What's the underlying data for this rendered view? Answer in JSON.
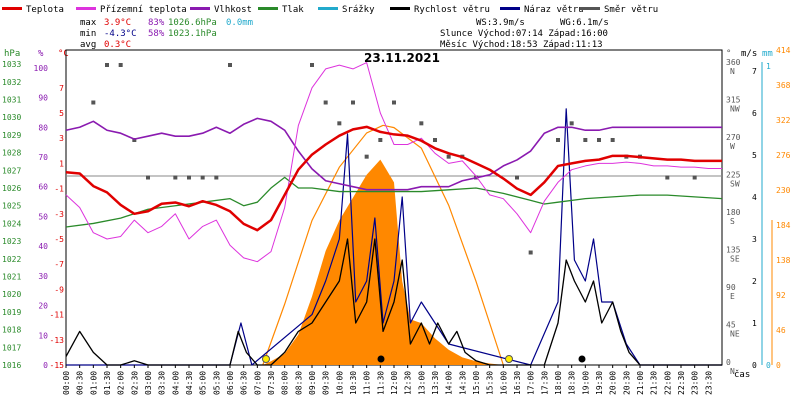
{
  "chart_data": {
    "type": "line",
    "title": "23.11.2021",
    "xlabel": "čas",
    "legend": [
      {
        "name": "Teplota",
        "color": "#e00000"
      },
      {
        "name": "Přízemní teplota",
        "color": "#dd33dd"
      },
      {
        "name": "Vlhkost",
        "color": "#8a1ab0"
      },
      {
        "name": "Tlak",
        "color": "#2a8a2a"
      },
      {
        "name": "Srážky",
        "color": "#22aacc"
      },
      {
        "name": "Rychlost větru",
        "color": "#000000"
      },
      {
        "name": "Náraz větru",
        "color": "#000088"
      },
      {
        "name": "Směr větru",
        "color": "#555555"
      }
    ],
    "stats": {
      "max_label": "max",
      "max_temp": "3.9°C",
      "max_hum": "83%",
      "max_press": "1026.6hPa",
      "rain": "0.0mm",
      "min_label": "min",
      "min_temp": "-4.3°C",
      "min_hum": "58%",
      "min_press": "1023.1hPa",
      "avg_label": "avg",
      "avg_temp": "0.3°C",
      "wind_speed": "WS:3.9m/s",
      "wind_gust": "WG:6.1m/s",
      "sun": "Slunce Východ:07:14 Západ:16:00",
      "moon": "Měsíc Východ:18:53 Západ:11:13"
    },
    "axes": {
      "hpa_title": "hPa",
      "hpa_ticks": [
        "1033",
        "1032",
        "1031",
        "1030",
        "1029",
        "1028",
        "1027",
        "1026",
        "1025",
        "1024",
        "1023",
        "1022",
        "1021",
        "1020",
        "1019",
        "1018",
        "1017",
        "1016"
      ],
      "hum_title": "%",
      "hum_ticks": [
        "100",
        "90",
        "80",
        "70",
        "60",
        "50",
        "40",
        "30",
        "20",
        "10",
        "0"
      ],
      "temp_title": "°C",
      "temp_ticks": [
        "7",
        "5",
        "3",
        "1",
        "-1",
        "-3",
        "-5",
        "-7",
        "-9",
        "-11",
        "-13",
        "-15"
      ],
      "dir_title": "°",
      "dir_ticks": [
        "360 N",
        "315 NW",
        "270 W",
        "225 SW",
        "180 S",
        "135 SE",
        "90 E",
        "45 NE",
        "0 N"
      ],
      "ms_title": "m/s",
      "ms_ticks": [
        "7",
        "6",
        "5",
        "4",
        "3",
        "2",
        "1",
        "0"
      ],
      "mm_title": "mm",
      "mm_ticks": [
        "1",
        "0"
      ],
      "solar_ticks": [
        "414",
        "368",
        "322",
        "276",
        "230",
        "184",
        "138",
        "92",
        "46",
        "0"
      ],
      "time_ticks": [
        "00:00",
        "00:30",
        "01:00",
        "01:30",
        "02:00",
        "02:30",
        "03:00",
        "03:30",
        "04:00",
        "04:30",
        "05:00",
        "05:30",
        "06:00",
        "06:30",
        "07:00",
        "07:30",
        "08:00",
        "08:30",
        "09:00",
        "09:30",
        "10:00",
        "10:30",
        "11:00",
        "11:30",
        "12:00",
        "12:30",
        "13:00",
        "13:30",
        "14:00",
        "14:30",
        "15:00",
        "15:30",
        "16:00",
        "16:30",
        "17:00",
        "17:30",
        "18:00",
        "18:30",
        "19:00",
        "19:30",
        "20:00",
        "20:30",
        "21:00",
        "21:30",
        "22:00",
        "22:30",
        "23:00",
        "23:30"
      ]
    },
    "series": [
      {
        "name": "Teplota",
        "unit": "°C",
        "color": "#e00000",
        "x": [
          0,
          0.5,
          1,
          1.5,
          2,
          2.5,
          3,
          3.5,
          4,
          4.5,
          5,
          5.5,
          6,
          6.5,
          7,
          7.5,
          8,
          8.5,
          9,
          9.5,
          10,
          10.5,
          11,
          11.5,
          12,
          12.5,
          13,
          13.5,
          14,
          14.5,
          15,
          15.5,
          16,
          16.5,
          17,
          17.5,
          18,
          18.5,
          19,
          19.5,
          20,
          20.5,
          21,
          21.5,
          22,
          22.5,
          23,
          23.5,
          24
        ],
        "y": [
          0.3,
          0.2,
          -0.8,
          -1.3,
          -2.3,
          -3.0,
          -2.8,
          -2.2,
          -2.1,
          -2.4,
          -2.0,
          -2.3,
          -2.8,
          -3.8,
          -4.3,
          -3.5,
          -1.5,
          0.5,
          1.7,
          2.5,
          3.2,
          3.7,
          3.9,
          3.5,
          3.3,
          3.2,
          2.8,
          2.2,
          1.8,
          1.5,
          1.0,
          0.5,
          -0.2,
          -1.0,
          -1.5,
          -0.5,
          0.8,
          1.0,
          1.2,
          1.3,
          1.6,
          1.6,
          1.5,
          1.4,
          1.3,
          1.3,
          1.2,
          1.2,
          1.2
        ]
      },
      {
        "name": "Přízemní teplota",
        "unit": "°C",
        "color": "#dd33dd",
        "x": [
          0,
          0.5,
          1,
          1.5,
          2,
          2.5,
          3,
          3.5,
          4,
          4.5,
          5,
          5.5,
          6,
          6.5,
          7,
          7.5,
          8,
          8.5,
          9,
          9.5,
          10,
          10.5,
          11,
          11.5,
          12,
          12.5,
          13,
          13.5,
          14,
          14.5,
          15,
          15.5,
          16,
          16.5,
          17,
          17.5,
          18,
          18.5,
          19,
          19.5,
          20,
          20.5,
          21,
          21.5,
          22,
          22.5,
          23,
          23.5,
          24
        ],
        "y": [
          -1.5,
          -2.5,
          -4.5,
          -5.0,
          -4.8,
          -3.5,
          -4.5,
          -4.0,
          -3.0,
          -5.0,
          -4.0,
          -3.5,
          -5.5,
          -6.5,
          -6.8,
          -6.0,
          -2.5,
          4.0,
          7.0,
          8.5,
          8.8,
          8.5,
          9.0,
          5.0,
          2.5,
          2.5,
          3.0,
          1.8,
          1.0,
          1.2,
          0.0,
          -1.5,
          -1.8,
          -3.0,
          -4.5,
          -2.0,
          -0.5,
          0.5,
          0.8,
          1.0,
          1.0,
          1.1,
          1.0,
          0.8,
          0.8,
          0.7,
          0.7,
          0.6,
          0.6
        ]
      },
      {
        "name": "Vlhkost",
        "unit": "%",
        "color": "#8a1ab0",
        "x": [
          0,
          0.5,
          1,
          1.5,
          2,
          2.5,
          3,
          3.5,
          4,
          4.5,
          5,
          5.5,
          6,
          6.5,
          7,
          7.5,
          8,
          8.5,
          9,
          9.5,
          10,
          10.5,
          11,
          11.5,
          12,
          12.5,
          13,
          13.5,
          14,
          14.5,
          15,
          15.5,
          16,
          16.5,
          17,
          17.5,
          18,
          18.5,
          19,
          19.5,
          20,
          20.5,
          21,
          21.5,
          22,
          22.5,
          23,
          23.5,
          24
        ],
        "y": [
          79,
          80,
          82,
          79,
          78,
          76,
          77,
          78,
          77,
          77,
          78,
          80,
          78,
          81,
          83,
          82,
          79,
          72,
          66,
          62,
          61,
          60,
          59,
          59,
          59,
          59,
          60,
          60,
          60,
          62,
          63,
          64,
          67,
          69,
          72,
          78,
          80,
          80,
          79,
          79,
          80,
          80,
          80,
          80,
          80,
          80,
          80,
          80,
          80
        ]
      },
      {
        "name": "Tlak",
        "unit": "hPa",
        "color": "#2a8a2a",
        "x": [
          0,
          1,
          2,
          3,
          4,
          5,
          6,
          6.5,
          7,
          7.5,
          8,
          8.5,
          9,
          10,
          11,
          12,
          13,
          14,
          15,
          16,
          17,
          17.5,
          18,
          19,
          20,
          21,
          22,
          23,
          24
        ],
        "y": [
          1023.8,
          1024.0,
          1024.3,
          1024.8,
          1025.0,
          1025.2,
          1025.4,
          1025.0,
          1025.2,
          1026.0,
          1026.6,
          1026.0,
          1026.0,
          1025.8,
          1025.8,
          1025.8,
          1025.8,
          1025.9,
          1026.0,
          1025.7,
          1025.3,
          1025.1,
          1025.2,
          1025.4,
          1025.5,
          1025.6,
          1025.6,
          1025.5,
          1025.4
        ]
      },
      {
        "name": "Rychlost větru",
        "unit": "m/s",
        "color": "#000000",
        "x": [
          0,
          0.5,
          1,
          1.5,
          2,
          2.5,
          3,
          3.5,
          4,
          4.5,
          5,
          5.5,
          6,
          6.3,
          6.6,
          7,
          7.5,
          8,
          8.5,
          9,
          9.5,
          10,
          10.3,
          10.6,
          11,
          11.3,
          11.6,
          12,
          12.3,
          12.6,
          13,
          13.3,
          13.6,
          14,
          14.3,
          14.6,
          15,
          15.5,
          16,
          16.5,
          17,
          17.5,
          18,
          18.3,
          18.6,
          19,
          19.3,
          19.6,
          20,
          20.3,
          20.6,
          21,
          21.5,
          22,
          22.5,
          23,
          23.5,
          24
        ],
        "y": [
          0.2,
          0.8,
          0.3,
          0.0,
          0.0,
          0.1,
          0.0,
          0.0,
          0.0,
          0.0,
          0.0,
          0.0,
          0.0,
          0.8,
          0.3,
          0.0,
          0.0,
          0.3,
          0.8,
          1.0,
          1.5,
          2.0,
          3.0,
          1.0,
          1.5,
          3.0,
          0.8,
          1.5,
          2.5,
          0.5,
          1.0,
          0.5,
          1.0,
          0.5,
          0.8,
          0.3,
          0.1,
          0.0,
          0.0,
          0.0,
          0.0,
          0.0,
          1.0,
          2.5,
          2.0,
          1.5,
          2.0,
          1.0,
          1.5,
          0.8,
          0.3,
          0.0,
          0.0,
          0.0,
          0.0,
          0.0,
          0.0,
          0.0
        ]
      },
      {
        "name": "Náraz větru",
        "unit": "m/s",
        "color": "#000088",
        "x": [
          0,
          6,
          6.4,
          6.8,
          9,
          9.5,
          10,
          10.3,
          10.6,
          11,
          11.3,
          11.6,
          12,
          12.3,
          12.6,
          13,
          14,
          17,
          18,
          18.3,
          18.6,
          19,
          19.3,
          19.6,
          20,
          20.5,
          21,
          24
        ],
        "y": [
          0,
          0,
          1.0,
          0,
          1.2,
          2.0,
          3.0,
          5.5,
          1.5,
          2.0,
          3.5,
          1.0,
          2.0,
          4.0,
          1.0,
          1.5,
          0.5,
          0,
          1.5,
          6.1,
          2.5,
          2.0,
          3.0,
          1.5,
          1.5,
          0.5,
          0,
          0
        ]
      },
      {
        "name": "Směr větru",
        "unit": "°",
        "color": "#555555",
        "x": [
          1,
          1.5,
          2,
          2.5,
          3,
          4,
          4.5,
          5,
          5.5,
          6,
          9,
          9.5,
          10,
          10.5,
          11,
          11.5,
          12,
          13,
          13.5,
          14,
          14.5,
          15,
          16.5,
          17,
          18,
          18.5,
          19,
          19.5,
          20,
          20.5,
          21,
          22,
          23
        ],
        "y": [
          315,
          360,
          360,
          270,
          225,
          225,
          225,
          225,
          225,
          360,
          360,
          315,
          290,
          315,
          250,
          270,
          315,
          290,
          270,
          250,
          250,
          225,
          225,
          135,
          270,
          290,
          270,
          270,
          270,
          250,
          250,
          225,
          225
        ]
      },
      {
        "name": "Sluneční záření",
        "unit": "W/m²",
        "color": "#ff8800",
        "x": [
          7.2,
          7.5,
          8,
          8.5,
          9,
          9.5,
          10,
          10.5,
          11,
          11.5,
          12,
          12.3,
          12.6,
          13,
          13.5,
          14,
          14.5,
          15,
          15.5,
          16
        ],
        "y": [
          0,
          5,
          15,
          40,
          90,
          150,
          190,
          220,
          250,
          270,
          240,
          110,
          60,
          55,
          35,
          20,
          10,
          5,
          2,
          0
        ]
      },
      {
        "name": "Teoretické záření",
        "unit": "W/m²",
        "color": "#ff8800",
        "x": [
          7.2,
          8,
          9,
          10,
          11,
          11.6,
          12,
          13,
          14,
          15,
          16
        ],
        "y": [
          0,
          80,
          190,
          260,
          305,
          315,
          312,
          285,
          210,
          110,
          0
        ]
      }
    ]
  }
}
